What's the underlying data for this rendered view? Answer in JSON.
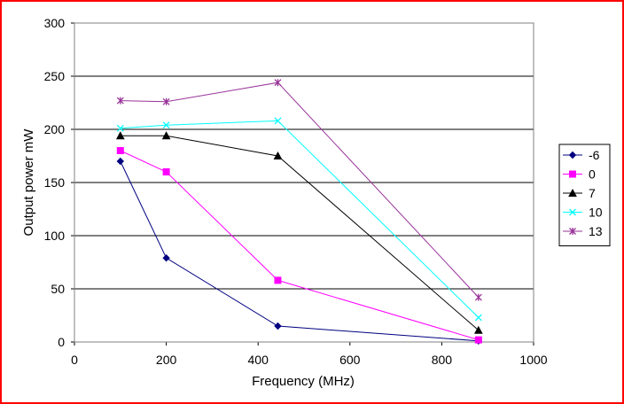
{
  "chart_data": {
    "type": "line",
    "title": "",
    "xlabel": "Frequency (MHz)",
    "ylabel": "Output power mW",
    "xlim": [
      0,
      1000
    ],
    "ylim": [
      0,
      300
    ],
    "xticks": [
      "0",
      "200",
      "400",
      "600",
      "800",
      "1000"
    ],
    "yticks": [
      "0",
      "50",
      "100",
      "150",
      "200",
      "250",
      "300"
    ],
    "grid": "horizontal",
    "legend_position": "right",
    "x": [
      100,
      200,
      443,
      880
    ],
    "series": [
      {
        "name": "-6",
        "color": "#000080",
        "marker": "diamond",
        "values": [
          170,
          79,
          15,
          1
        ]
      },
      {
        "name": "0",
        "color": "#ff00ff",
        "marker": "square",
        "values": [
          180,
          160,
          58,
          2
        ]
      },
      {
        "name": "7",
        "color": "#000000",
        "marker": "triangle",
        "values": [
          194,
          194,
          175,
          11
        ]
      },
      {
        "name": "10",
        "color": "#00ffff",
        "marker": "x",
        "values": [
          201,
          204,
          208,
          23
        ]
      },
      {
        "name": "13",
        "color": "#993399",
        "marker": "star",
        "values": [
          227,
          226,
          244,
          42
        ]
      }
    ]
  }
}
